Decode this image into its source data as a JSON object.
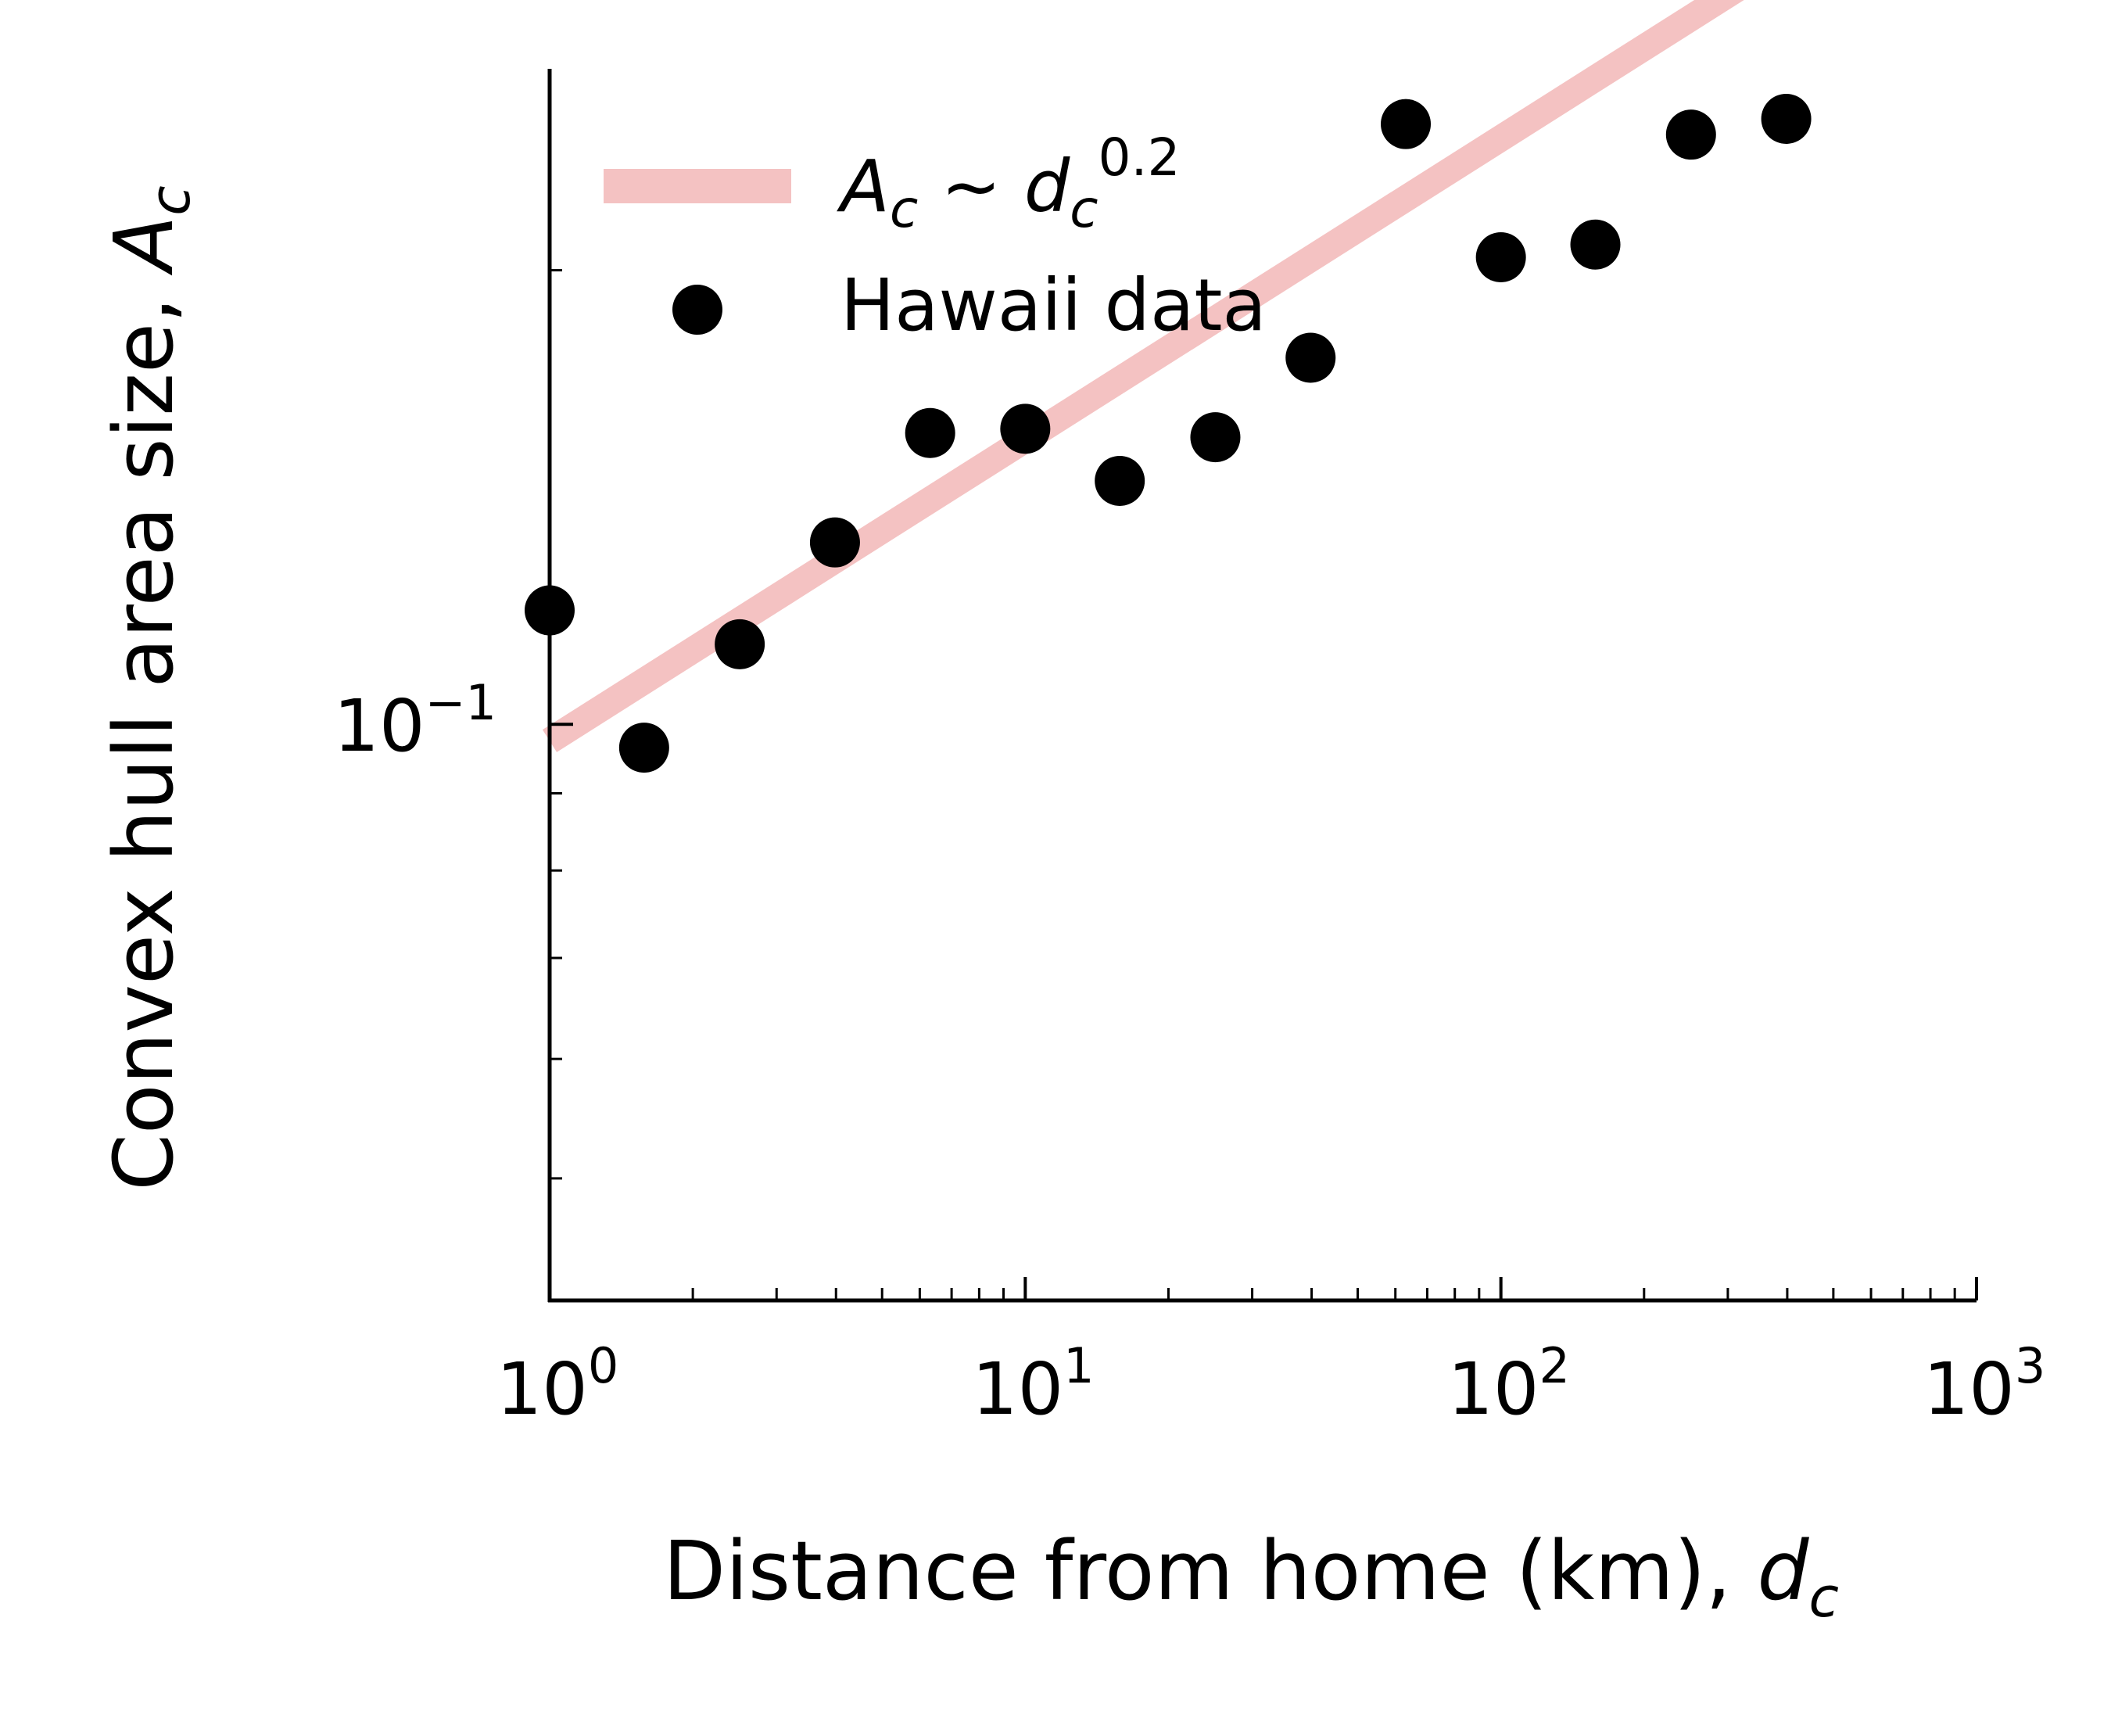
{
  "chart_data": {
    "type": "scatter",
    "xscale": "log",
    "yscale": "log",
    "xlim": [
      1,
      1000
    ],
    "ylim": [
      0.0415,
      0.272
    ],
    "x_ticks": [
      {
        "base": "10",
        "exp": "0"
      },
      {
        "base": "10",
        "exp": "1"
      },
      {
        "base": "10",
        "exp": "2"
      },
      {
        "base": "10",
        "exp": "3"
      }
    ],
    "y_ticks": [
      {
        "base": "10",
        "exp": "−1",
        "value": 0.1
      }
    ],
    "xlabel": {
      "text": "Distance from home (km), ",
      "symbol": "d",
      "sub": "c"
    },
    "ylabel": {
      "text": "Convex hull area size, ",
      "symbol": "A",
      "sub": "c"
    },
    "legend_position": "top-left",
    "series": [
      {
        "kind": "line",
        "color": "#f4c2c2",
        "label": {
          "symbol": "A",
          "sub": "c",
          "sep": " ~ ",
          "symbol2": "d",
          "sub2": "c",
          "sup": "0.2"
        },
        "x": [
          1,
          1000
        ],
        "y": [
          0.0975,
          0.3875
        ]
      },
      {
        "kind": "scatter",
        "color": "#000000",
        "name": "Hawaii data",
        "x": [
          1,
          1.58,
          2.51,
          3.98,
          6.31,
          10,
          15.8,
          25.1,
          39.8,
          63.1,
          100,
          158,
          251,
          398
        ],
        "y": [
          0.119,
          0.0965,
          0.113,
          0.132,
          0.156,
          0.157,
          0.145,
          0.155,
          0.175,
          0.25,
          0.204,
          0.208,
          0.246,
          0.252
        ]
      }
    ]
  }
}
